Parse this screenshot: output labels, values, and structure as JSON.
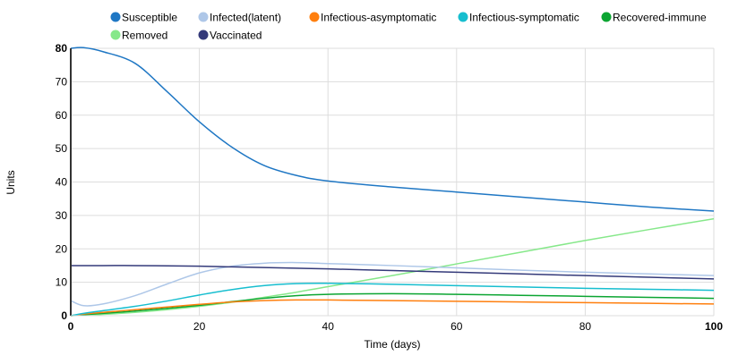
{
  "chart_data": {
    "type": "line",
    "title": "",
    "xlabel": "Time (days)",
    "ylabel": "Units",
    "xlim": [
      0,
      100
    ],
    "ylim": [
      0,
      80
    ],
    "xticks": [
      0,
      20,
      40,
      60,
      80,
      100
    ],
    "yticks": [
      0,
      10,
      20,
      30,
      40,
      50,
      60,
      70,
      80
    ],
    "grid": true,
    "legend_position": "top",
    "x": [
      0,
      2,
      5,
      10,
      15,
      20,
      25,
      30,
      35,
      40,
      50,
      60,
      70,
      80,
      90,
      100
    ],
    "series": [
      {
        "name": "Susceptible",
        "color": "#1f77c4",
        "values": [
          80,
          80.2,
          79,
          75.5,
          67,
          58,
          50.5,
          45,
          42,
          40.3,
          38.5,
          37,
          35.5,
          34,
          32.5,
          31.3
        ]
      },
      {
        "name": "Infected(latent)",
        "color": "#aec7e8",
        "values": [
          4.5,
          3,
          3.5,
          6,
          9.5,
          12.8,
          14.8,
          15.7,
          15.9,
          15.6,
          15,
          14.3,
          13.6,
          13,
          12.5,
          12
        ]
      },
      {
        "name": "Infectious-asymptomatic",
        "color": "#ff7f0e",
        "values": [
          0,
          0.5,
          1,
          1.8,
          2.6,
          3.4,
          4.1,
          4.5,
          4.7,
          4.7,
          4.5,
          4.3,
          4.1,
          3.9,
          3.7,
          3.5
        ]
      },
      {
        "name": "Infectious-symptomatic",
        "color": "#17becf",
        "values": [
          0,
          0.7,
          1.5,
          2.8,
          4.4,
          6.2,
          7.8,
          9,
          9.6,
          9.7,
          9.4,
          9,
          8.6,
          8.2,
          7.9,
          7.6
        ]
      },
      {
        "name": "Recovered-immune",
        "color": "#0ca532",
        "values": [
          0,
          0.3,
          0.7,
          1.4,
          2.2,
          3.1,
          4.2,
          5.2,
          6,
          6.4,
          6.6,
          6.4,
          6.1,
          5.8,
          5.5,
          5.2
        ]
      },
      {
        "name": "Removed",
        "color": "#86e88a",
        "values": [
          0,
          0.15,
          0.4,
          1,
          1.8,
          2.8,
          4,
          5.5,
          7,
          8.7,
          12,
          15.5,
          19,
          22.5,
          25.8,
          29
        ]
      },
      {
        "name": "Vaccinated",
        "color": "#343a7a",
        "values": [
          15,
          15,
          15,
          15,
          14.9,
          14.8,
          14.6,
          14.4,
          14.2,
          14,
          13.5,
          13,
          12.5,
          12,
          11.5,
          11
        ]
      }
    ]
  }
}
